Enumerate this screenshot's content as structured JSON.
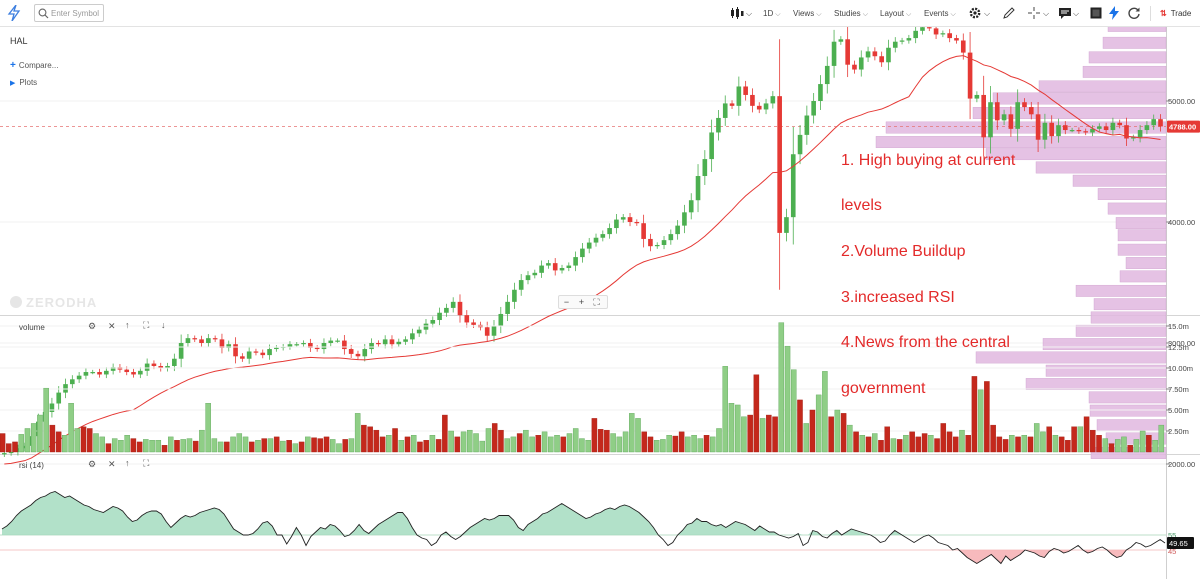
{
  "toolbar": {
    "search_placeholder": "Enter Symbol",
    "interval": "1D",
    "views": "Views",
    "studies": "Studies",
    "layout": "Layout",
    "events": "Events",
    "trade": "Trade",
    "icons": [
      "logo-icon",
      "search-icon",
      "candles-icon",
      "gear-icon",
      "draw-icon",
      "crosshair-icon",
      "comment-icon",
      "snapshot-icon",
      "flash-icon",
      "refresh-icon",
      "trade-icon"
    ]
  },
  "chart_header": {
    "symbol": "HAL",
    "compare": "Compare...",
    "plots": "Plots",
    "watermark": "ZERODHA",
    "zoom_out": "−",
    "zoom_in": "+",
    "fit": "⛶"
  },
  "annotation": {
    "lines": [
      "1. High buying at current",
      "levels",
      "2.Volume Buildup",
      "3.increased RSI",
      "4.News from the central",
      "government"
    ],
    "color": "#e32a2a"
  },
  "colors": {
    "up": "#4caf50",
    "down": "#e53935",
    "ma": "#e53935",
    "profile": "#e1b8e0",
    "rsi_fill_up": "#a5dcbf",
    "rsi_fill_down": "#f6b3b6"
  },
  "chart_data": [
    {
      "type": "candlestick",
      "symbol": "HAL",
      "ylim": [
        2000,
        6000
      ],
      "ticks": [
        "6000.00",
        "5000.00",
        "4000.00",
        "3000.00",
        "2000.00"
      ],
      "last_price": "4788.00",
      "reference_line": 4788,
      "overlay": "moving average",
      "closes": [
        2090,
        2100,
        2130,
        2150,
        2230,
        2350,
        2430,
        2500,
        2590,
        2660,
        2700,
        2730,
        2760,
        2760,
        2740,
        2770,
        2800,
        2780,
        2760,
        2740,
        2770,
        2830,
        2810,
        2790,
        2810,
        2870,
        3000,
        3040,
        3030,
        3000,
        3040,
        3030,
        2960,
        2990,
        2890,
        2870,
        2930,
        2920,
        2900,
        2950,
        2960,
        2970,
        2990,
        2990,
        3000,
        2960,
        2950,
        3000,
        3020,
        3020,
        2950,
        2910,
        2890,
        2950,
        3000,
        2990,
        3030,
        2990,
        3010,
        3030,
        3080,
        3110,
        3160,
        3190,
        3250,
        3290,
        3340,
        3230,
        3170,
        3150,
        3130,
        3060,
        3140,
        3240,
        3340,
        3440,
        3520,
        3560,
        3580,
        3640,
        3660,
        3600,
        3620,
        3640,
        3710,
        3780,
        3830,
        3870,
        3900,
        3950,
        4020,
        4040,
        4000,
        3990,
        3860,
        3800,
        3810,
        3850,
        3900,
        3970,
        4080,
        4180,
        4380,
        4520,
        4740,
        4860,
        4980,
        4960,
        5120,
        5050,
        4960,
        4930,
        4980,
        5040,
        3910,
        4040,
        4560,
        4720,
        4880,
        5000,
        5140,
        5290,
        5490,
        5510,
        5300,
        5260,
        5360,
        5410,
        5370,
        5320,
        5440,
        5490,
        5500,
        5520,
        5580,
        5610,
        5600,
        5550,
        5560,
        5520,
        5500,
        5400,
        5020,
        5050,
        4700,
        4990,
        4840,
        4890,
        4770,
        4990,
        4950,
        4890,
        4680,
        4820,
        4710,
        4800,
        4760,
        4760,
        4750,
        4740,
        4770,
        4790,
        4760,
        4820,
        4800,
        4690,
        4700,
        4760,
        4800,
        4850,
        4790
      ],
      "profile_levels": [
        5620,
        5480,
        5360,
        5240,
        5120,
        5020,
        4900,
        4780,
        4660,
        4560,
        4450,
        4340,
        4230,
        4110,
        3990,
        3890,
        3770,
        3660,
        3550,
        3430,
        3320,
        3210,
        3100,
        2990,
        2880,
        2770,
        2660,
        2550,
        2440,
        2320,
        2210,
        2090
      ],
      "profile_widths": [
        58,
        63,
        77,
        83,
        127,
        173,
        193,
        280,
        290,
        180,
        130,
        93,
        68,
        58,
        50,
        48,
        48,
        40,
        46,
        90,
        72,
        75,
        90,
        123,
        190,
        120,
        140,
        77,
        76,
        69,
        60,
        75
      ]
    },
    {
      "type": "bar",
      "title": "volume",
      "ticks": [
        "15.0m",
        "12.5m",
        "10.00m",
        "7.50m",
        "5.00m",
        "2.50m"
      ],
      "ylim": [
        0,
        15.5
      ],
      "unit": "m",
      "values": [
        2.2,
        1.0,
        1.2,
        2.1,
        2.8,
        3.4,
        4.4,
        7.6,
        3.2,
        2.4,
        2.0,
        5.8,
        2.8,
        3.0,
        2.8,
        2.2,
        1.8,
        1.0,
        1.6,
        1.4,
        2.0,
        1.6,
        1.2,
        1.5,
        1.4,
        1.4,
        0.8,
        1.8,
        1.4,
        1.5,
        1.6,
        1.3,
        2.6,
        5.8,
        1.6,
        1.2,
        1.2,
        1.8,
        2.2,
        1.8,
        1.2,
        1.4,
        1.6,
        1.6,
        1.8,
        1.3,
        1.4,
        1.0,
        1.2,
        1.8,
        1.7,
        1.6,
        1.8,
        1.5,
        1.0,
        1.5,
        1.6,
        4.6,
        3.2,
        3.0,
        2.6,
        1.8,
        2.0,
        2.8,
        1.4,
        1.8,
        2.0,
        1.2,
        1.4,
        2.0,
        1.5,
        4.4,
        2.5,
        1.8,
        2.4,
        2.6,
        2.2,
        1.3,
        2.8,
        3.4,
        2.6,
        1.6,
        1.8,
        2.2,
        2.6,
        1.8,
        2.0,
        2.4,
        1.8,
        2.0,
        1.8,
        2.2,
        2.8,
        1.6,
        1.4,
        4.0,
        2.7,
        2.6,
        2.2,
        1.8,
        2.4,
        4.6,
        4.0,
        2.4,
        1.8,
        1.4,
        1.5,
        2.0,
        1.9,
        2.4,
        1.8,
        2.0,
        1.6,
        2.0,
        1.8,
        2.8,
        10.2,
        5.8,
        5.6,
        4.2,
        4.4,
        9.2,
        4.0,
        4.4,
        4.2,
        15.4,
        12.6,
        9.8,
        6.2,
        3.4,
        5.0,
        6.8,
        9.6,
        4.2,
        5.0,
        4.6,
        3.2,
        2.4,
        2.0,
        1.8,
        2.2,
        1.4,
        3.0,
        1.6,
        1.5,
        2.0,
        2.4,
        1.8,
        2.2,
        2.0,
        1.6,
        3.4,
        2.4,
        1.8,
        2.6,
        2.0,
        9.0,
        7.4,
        8.4,
        3.2,
        1.8,
        1.5,
        2.0,
        1.8,
        2.0,
        1.8,
        3.4,
        2.4,
        3.0,
        2.0,
        1.8,
        1.4,
        3.0,
        3.0,
        4.2,
        2.6,
        2.0,
        1.6,
        1.0,
        1.5,
        1.8,
        0.8,
        1.5,
        2.5,
        2.0,
        1.4,
        3.2
      ],
      "up": [
        0,
        0,
        0,
        1,
        1,
        1,
        1,
        1,
        0,
        0,
        1,
        1,
        1,
        0,
        0,
        1,
        1,
        0,
        1,
        1,
        1,
        0,
        0,
        1,
        1,
        1,
        0,
        1,
        0,
        1,
        1,
        0,
        1,
        1,
        1,
        1,
        0,
        1,
        1,
        1,
        0,
        1,
        0,
        1,
        0,
        1,
        0,
        1,
        0,
        1,
        0,
        0,
        0,
        1,
        1,
        0,
        1,
        1,
        0,
        0,
        0,
        0,
        1,
        0,
        1,
        0,
        1,
        0,
        0,
        1,
        0,
        0,
        1,
        0,
        1,
        1,
        1,
        1,
        1,
        0,
        0,
        1,
        1,
        0,
        1,
        1,
        0,
        1,
        1,
        1,
        0,
        1,
        1,
        1,
        1,
        0,
        0,
        0,
        1,
        1,
        1,
        1,
        1,
        0,
        0,
        1,
        1,
        1,
        0,
        0,
        1,
        1,
        1,
        0,
        1,
        1,
        1,
        1,
        1,
        1,
        0,
        0,
        1,
        0,
        0,
        1,
        1,
        1,
        0,
        1,
        0,
        1,
        1,
        0,
        1,
        0,
        1,
        0,
        1,
        0,
        1,
        0,
        0,
        1,
        0,
        1,
        0,
        0,
        0,
        1,
        0,
        0,
        0,
        0,
        1,
        0,
        0,
        1,
        0,
        0,
        0,
        0,
        1,
        0,
        1,
        0,
        1,
        1,
        0,
        1,
        0,
        0,
        0,
        1,
        0,
        0,
        0,
        1,
        0,
        1,
        1,
        0,
        1,
        1,
        0,
        1,
        1,
        0,
        1,
        0,
        1
      ]
    },
    {
      "type": "line",
      "title": "rsi (14)",
      "ticks": [
        "55",
        "45"
      ],
      "ylim": [
        30,
        90
      ],
      "last_value": "49.65",
      "values": [
        59,
        61,
        64,
        68,
        71,
        73,
        75,
        78,
        80,
        81,
        83,
        84,
        82,
        80,
        81,
        79,
        77,
        75,
        74,
        72,
        71,
        70,
        72,
        74,
        73,
        71,
        67,
        64,
        65,
        68,
        70,
        71,
        71,
        69,
        64,
        60,
        63,
        66,
        68,
        67,
        68,
        70,
        71,
        72,
        73,
        72,
        69,
        64,
        59,
        57,
        55,
        55,
        56,
        59,
        63,
        64,
        61,
        55,
        55,
        49,
        54,
        60,
        55,
        48,
        54,
        57,
        60,
        59,
        62,
        61,
        58,
        54,
        55,
        58,
        62,
        58,
        56,
        59,
        62,
        64,
        66,
        68,
        70,
        70,
        66,
        60,
        55,
        53,
        52,
        48,
        50,
        55,
        57,
        54,
        52,
        54,
        57,
        60,
        62,
        64,
        66,
        65,
        66,
        68,
        68,
        68,
        65,
        60,
        58,
        62,
        64,
        66,
        69,
        70,
        72,
        74,
        76,
        74,
        72,
        70,
        68,
        66,
        67,
        69,
        70,
        72,
        73,
        72,
        74,
        75,
        74,
        72,
        70,
        67,
        64,
        60,
        55,
        52,
        48,
        50,
        55,
        58,
        62,
        63,
        66,
        64,
        64,
        62,
        61,
        62,
        60,
        62,
        64,
        63,
        62,
        60,
        58,
        61,
        59,
        57,
        57,
        55,
        54,
        53,
        54,
        56,
        48,
        50,
        58,
        57,
        54,
        53,
        56,
        58,
        55,
        57,
        59,
        58,
        57,
        56,
        55,
        53,
        50,
        51,
        55,
        58,
        56,
        54,
        52,
        50,
        52,
        54,
        55,
        53,
        50,
        49,
        48,
        45,
        46,
        43,
        40,
        38,
        36,
        38,
        40,
        42,
        39,
        36,
        41,
        38,
        40,
        42,
        45,
        44,
        43,
        41,
        40,
        44,
        46,
        45,
        43,
        44,
        46,
        48,
        45,
        43,
        44,
        46,
        47,
        45,
        42,
        40,
        41,
        45,
        47,
        50,
        49,
        47,
        48,
        50,
        52,
        49.65
      ]
    }
  ]
}
